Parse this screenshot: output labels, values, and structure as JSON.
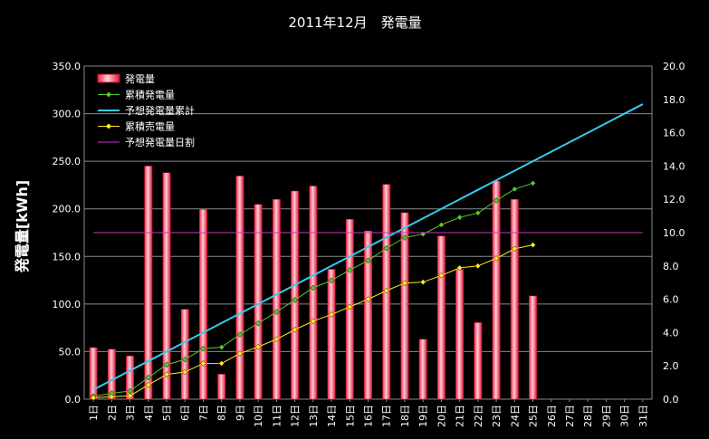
{
  "chart_data": {
    "type": "bar",
    "title": "2011年12月　発電量",
    "ylabel": "発電量[kWh]",
    "ylim": [
      0,
      350
    ],
    "y2lim": [
      0,
      20
    ],
    "yticks": [
      "0.0",
      "50.0",
      "100.0",
      "150.0",
      "200.0",
      "250.0",
      "300.0",
      "350.0"
    ],
    "y2ticks": [
      "0.0",
      "2.0",
      "4.0",
      "6.0",
      "8.0",
      "10.0",
      "12.0",
      "14.0",
      "16.0",
      "18.0",
      "20.0"
    ],
    "categories": [
      "1日",
      "2日",
      "3日",
      "4日",
      "5日",
      "6日",
      "7日",
      "8日",
      "9日",
      "10日",
      "11日",
      "12日",
      "13日",
      "14日",
      "15日",
      "16日",
      "17日",
      "18日",
      "19日",
      "20日",
      "21日",
      "22日",
      "23日",
      "24日",
      "25日",
      "26日",
      "27日",
      "28日",
      "29日",
      "30日",
      "31日"
    ],
    "legend_position": "top-left",
    "grid": true,
    "series": [
      {
        "name": "発電量",
        "kind": "bar",
        "axis": "right",
        "color": "#ff3355",
        "values": [
          3.1,
          3.0,
          2.6,
          14.0,
          13.6,
          5.4,
          11.4,
          1.5,
          13.4,
          11.7,
          12.0,
          12.5,
          12.8,
          7.8,
          10.8,
          10.1,
          12.9,
          11.2,
          3.6,
          9.8,
          7.8,
          4.6,
          13.1,
          12.0,
          6.2,
          null,
          null,
          null,
          null,
          null,
          null
        ]
      },
      {
        "name": "累積発電量",
        "kind": "line",
        "axis": "left",
        "color": "#55cc33",
        "marker": "diamond",
        "values": [
          3.1,
          6.1,
          8.7,
          22.7,
          36.3,
          41.7,
          53.1,
          54.6,
          68.0,
          79.7,
          91.7,
          104.2,
          117.0,
          124.8,
          135.6,
          145.7,
          158.6,
          169.8,
          173.4,
          183.2,
          191.0,
          195.6,
          208.7,
          220.7,
          226.9,
          null,
          null,
          null,
          null,
          null,
          null
        ]
      },
      {
        "name": "予想発電量累計",
        "kind": "line",
        "axis": "left",
        "color": "#33ccee",
        "values": [
          10,
          20,
          30,
          40,
          50,
          60,
          70,
          80,
          90,
          100,
          110,
          120,
          130,
          140,
          150,
          160,
          170,
          180,
          190,
          200,
          210,
          220,
          230,
          240,
          250,
          260,
          270,
          280,
          290,
          300,
          310
        ]
      },
      {
        "name": "累積売電量",
        "kind": "line",
        "axis": "left",
        "color": "#ffee22",
        "marker": "diamond",
        "values": [
          1.5,
          2.5,
          3.5,
          15.0,
          26.0,
          28.5,
          37.5,
          37.6,
          48.0,
          55.0,
          63.0,
          73.0,
          82.0,
          89.0,
          97.0,
          105.0,
          114.0,
          122.0,
          123.0,
          130.0,
          138.0,
          140.0,
          148.0,
          158.0,
          162.0,
          null,
          null,
          null,
          null,
          null,
          null
        ]
      },
      {
        "name": "予想発電量日割",
        "kind": "line",
        "axis": "right",
        "color": "#cc33cc",
        "values": [
          10,
          10,
          10,
          10,
          10,
          10,
          10,
          10,
          10,
          10,
          10,
          10,
          10,
          10,
          10,
          10,
          10,
          10,
          10,
          10,
          10,
          10,
          10,
          10,
          10,
          10,
          10,
          10,
          10,
          10,
          10
        ]
      }
    ]
  }
}
